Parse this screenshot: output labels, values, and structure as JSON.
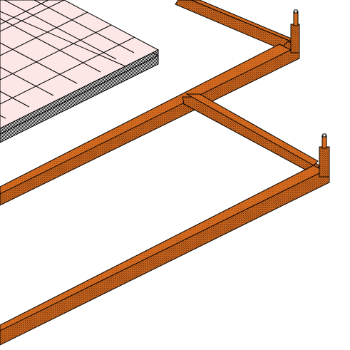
{
  "scene": {
    "background_color": "#ffffff",
    "objects": [
      {
        "name": "tiled-floor-platform",
        "kind": "tiled floor with hatched edge",
        "tile_color": "#fce6e6",
        "grid_color": "#000000",
        "edge_color": "#707070"
      },
      {
        "name": "fence-rail-upper",
        "kind": "wooden fence rail",
        "color": "#c0601c"
      },
      {
        "name": "fence-rail-lower",
        "kind": "wooden fence rail",
        "color": "#c0601c"
      },
      {
        "name": "fence-post-upper",
        "kind": "fence corner post",
        "color": "#c0601c"
      },
      {
        "name": "fence-post-lower",
        "kind": "fence corner post",
        "color": "#c0601c"
      }
    ]
  },
  "colors": {
    "wood_light": "#d2691e",
    "wood_mid": "#c0601c",
    "wood_dark": "#7a3a10",
    "outline": "#000000",
    "tile_fill": "#fce6e6",
    "edge_hatch": "#707070"
  }
}
